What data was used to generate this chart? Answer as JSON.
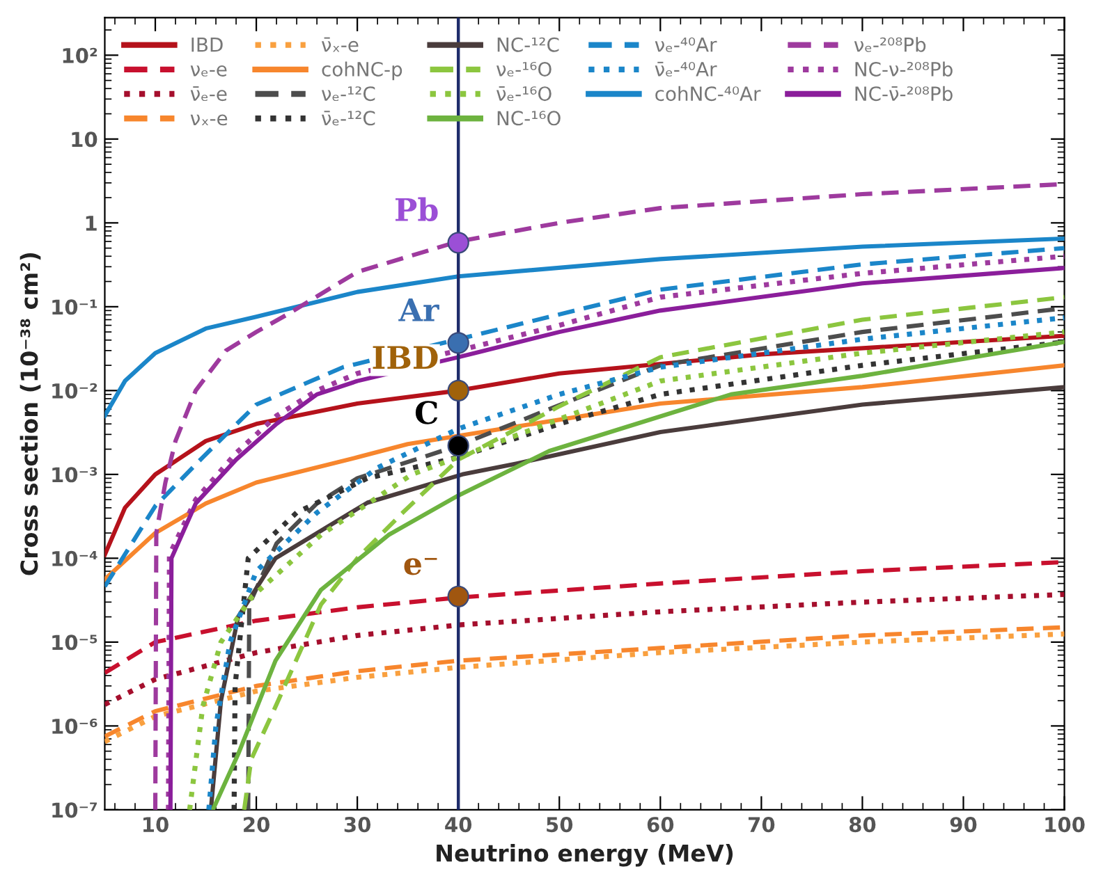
{
  "chart_data": {
    "type": "line",
    "xlabel": "Neutrino energy (MeV)",
    "ylabel": "Cross section (10⁻³⁸ cm²)",
    "log": "y",
    "xlim": [
      5,
      100
    ],
    "xticks": [
      10,
      20,
      30,
      40,
      50,
      60,
      70,
      80,
      90,
      100
    ],
    "ylim": [
      1e-07,
      280
    ],
    "yticks": [
      {
        "value": 1e-07,
        "label": "10⁻⁷"
      },
      {
        "value": 1e-06,
        "label": "10⁻⁶"
      },
      {
        "value": 1e-05,
        "label": "10⁻⁵"
      },
      {
        "value": 0.0001,
        "label": "10⁻⁴"
      },
      {
        "value": 0.001,
        "label": "10⁻³"
      },
      {
        "value": 0.01,
        "label": "10⁻²"
      },
      {
        "value": 0.1,
        "label": "10⁻¹"
      },
      1,
      10,
      {
        "value": 100,
        "label": "10²"
      }
    ],
    "grid": false,
    "legend": "top left",
    "marker": "none",
    "ref_lines": [
      {
        "axis": "x",
        "value": 40,
        "color": "#1f2d6b",
        "line_style": "solid"
      }
    ],
    "series": [
      {
        "name": "IBD",
        "color": "#b5121b",
        "line_style": "solid",
        "x": [
          5,
          7,
          10,
          15,
          20,
          30,
          40,
          50,
          70,
          100
        ],
        "values": [
          0.00011,
          0.0004,
          0.001,
          0.0025,
          0.004,
          0.007,
          0.01,
          0.016,
          0.027,
          0.045
        ]
      },
      {
        "name": "νₑ-e",
        "color": "#c8102e",
        "line_style": "dashed",
        "x": [
          5,
          10,
          20,
          30,
          40,
          60,
          80,
          100
        ],
        "values": [
          4.3e-06,
          1e-05,
          1.8e-05,
          2.6e-05,
          3.4e-05,
          5e-05,
          7e-05,
          9e-05
        ]
      },
      {
        "name": "ν̄ₑ-e",
        "color": "#a50f2d",
        "line_style": "dotted",
        "x": [
          5,
          10,
          20,
          30,
          40,
          60,
          80,
          100
        ],
        "values": [
          1.8e-06,
          3.6e-06,
          7.5e-06,
          1.2e-05,
          1.6e-05,
          2.3e-05,
          3e-05,
          3.7e-05
        ]
      },
      {
        "name": "νₓ-e",
        "color": "#f7862d",
        "line_style": "dashed",
        "x": [
          5,
          10,
          20,
          30,
          40,
          60,
          80,
          100
        ],
        "values": [
          7.5e-07,
          1.5e-06,
          3e-06,
          4.5e-06,
          6e-06,
          8.5e-06,
          1.2e-05,
          1.5e-05
        ]
      },
      {
        "name": "ν̄ₓ-e",
        "color": "#f9a03f",
        "line_style": "dotted",
        "x": [
          5,
          10,
          20,
          30,
          40,
          60,
          80,
          100
        ],
        "values": [
          6.5e-07,
          1.3e-06,
          2.6e-06,
          3.8e-06,
          5e-06,
          7.5e-06,
          1e-05,
          1.25e-05
        ]
      },
      {
        "name": "cohNC-p",
        "color": "#f7862d",
        "line_style": "solid",
        "x": [
          5,
          10,
          15,
          20,
          30,
          35,
          45,
          60,
          80,
          100
        ],
        "values": [
          5.6e-05,
          0.0002,
          0.00045,
          0.0008,
          0.0016,
          0.0023,
          0.0036,
          0.007,
          0.011,
          0.02
        ]
      },
      {
        "name": "νₑ-¹²C",
        "color": "#4d4d4d",
        "line_style": "dashed",
        "x": [
          19.2,
          19.3,
          22,
          26,
          30,
          40,
          49,
          60,
          80,
          100
        ],
        "values": [
          1e-07,
          2.8e-05,
          0.00015,
          0.00045,
          0.0009,
          0.0022,
          0.006,
          0.02,
          0.05,
          0.096
        ]
      },
      {
        "name": "ν̄ₑ-¹²C",
        "color": "#333333",
        "line_style": "dotted",
        "x": [
          17.8,
          17.9,
          19.2,
          24,
          31,
          40,
          50,
          60,
          80,
          100
        ],
        "values": [
          1e-07,
          3e-06,
          0.0001,
          0.00035,
          0.0009,
          0.0016,
          0.004,
          0.009,
          0.02,
          0.038
        ]
      },
      {
        "name": "NC-¹²C",
        "color": "#4a3c3c",
        "line_style": "solid",
        "x": [
          15.5,
          16.5,
          18.2,
          21.9,
          31,
          40.4,
          45.8,
          60,
          80,
          100
        ],
        "values": [
          1e-07,
          2e-06,
          2e-05,
          0.0001,
          0.00046,
          0.001,
          0.00135,
          0.0032,
          0.0068,
          0.011
        ]
      },
      {
        "name": "νₑ-¹⁶O",
        "color": "#8cc63f",
        "line_style": "dashed",
        "x": [
          18.8,
          19.5,
          21.9,
          26.4,
          30,
          34.5,
          40,
          50,
          60,
          80,
          100
        ],
        "values": [
          1e-07,
          4e-07,
          1.7e-06,
          2.8e-05,
          0.0001,
          0.00035,
          0.0015,
          0.0065,
          0.025,
          0.07,
          0.13
        ]
      },
      {
        "name": "ν̄ₑ-¹⁶O",
        "color": "#8cc63f",
        "line_style": "dotted",
        "x": [
          13.4,
          14.7,
          16.5,
          19.6,
          26.4,
          35.4,
          40,
          60,
          80,
          100
        ],
        "values": [
          1e-07,
          1.7e-06,
          1e-05,
          3.5e-05,
          0.00019,
          0.001,
          0.0016,
          0.013,
          0.028,
          0.05
        ]
      },
      {
        "name": "NC-¹⁶O",
        "color": "#6db33f",
        "line_style": "solid",
        "x": [
          15.7,
          18.2,
          21.9,
          26.4,
          33.1,
          40,
          49,
          67,
          80,
          100
        ],
        "values": [
          1e-07,
          4.6e-07,
          6e-06,
          4.2e-05,
          0.00019,
          0.00056,
          0.0019,
          0.009,
          0.015,
          0.038
        ]
      },
      {
        "name": "νₑ-⁴⁰Ar",
        "color": "#1b86c9",
        "line_style": "dashed",
        "x": [
          5,
          10,
          14.7,
          20,
          28.6,
          40,
          60,
          80,
          100
        ],
        "values": [
          4.6e-05,
          0.00042,
          0.0016,
          0.0068,
          0.019,
          0.041,
          0.16,
          0.32,
          0.5
        ]
      },
      {
        "name": "ν̄ₑ-⁴⁰Ar",
        "color": "#1b86c9",
        "line_style": "dotted",
        "x": [
          15.3,
          16,
          17.4,
          20,
          26,
          32,
          40,
          50,
          60,
          80,
          100
        ],
        "values": [
          1e-07,
          1e-06,
          1e-05,
          7e-05,
          0.00035,
          0.0012,
          0.0035,
          0.009,
          0.019,
          0.041,
          0.074
        ]
      },
      {
        "name": "cohNC-⁴⁰Ar",
        "color": "#1b86c9",
        "line_style": "solid",
        "x": [
          5,
          7,
          10,
          15,
          20,
          30,
          40,
          60,
          80,
          100
        ],
        "values": [
          0.005,
          0.013,
          0.028,
          0.055,
          0.076,
          0.15,
          0.23,
          0.37,
          0.52,
          0.65
        ]
      },
      {
        "name": "νₑ-²⁰⁸Pb",
        "color": "#9e3a9e",
        "line_style": "dashed",
        "x": [
          10,
          10.1,
          11,
          12,
          14,
          17,
          20,
          23,
          30,
          40,
          50,
          60,
          80,
          100
        ],
        "values": [
          1e-07,
          0.0002,
          0.0008,
          0.0025,
          0.01,
          0.03,
          0.05,
          0.08,
          0.26,
          0.6,
          1.0,
          1.5,
          2.2,
          2.9
        ]
      },
      {
        "name": "NC-ν-²⁰⁸Pb",
        "color": "#9e3a9e",
        "line_style": "dotted",
        "x": [
          11.3,
          11.4,
          14,
          18,
          22,
          26,
          30,
          40,
          50,
          60,
          80,
          100
        ],
        "values": [
          1e-07,
          0.00011,
          0.0005,
          0.0018,
          0.005,
          0.01,
          0.016,
          0.03,
          0.06,
          0.13,
          0.25,
          0.4
        ]
      },
      {
        "name": "NC-ν̄-²⁰⁸Pb",
        "color": "#8b1e9b",
        "line_style": "solid",
        "x": [
          11.5,
          11.6,
          14,
          18,
          22,
          26,
          30,
          40,
          50,
          60,
          80,
          100
        ],
        "values": [
          1e-07,
          0.0001,
          0.00045,
          0.0015,
          0.004,
          0.009,
          0.013,
          0.025,
          0.05,
          0.09,
          0.19,
          0.29
        ]
      },
      {
        "type": "scatter",
        "x": [
          40,
          40,
          40,
          40,
          40
        ],
        "values": [
          0.58,
          0.037,
          0.01,
          0.0022,
          3.5e-05
        ],
        "colors": [
          "#9b4fd6",
          "#3a6fb0",
          "#a0620a",
          "#000000",
          "#a0560f"
        ],
        "marker": "circle"
      }
    ],
    "annotations": [
      "Pb",
      "Ar",
      "IBD",
      "C",
      "e⁻"
    ]
  }
}
